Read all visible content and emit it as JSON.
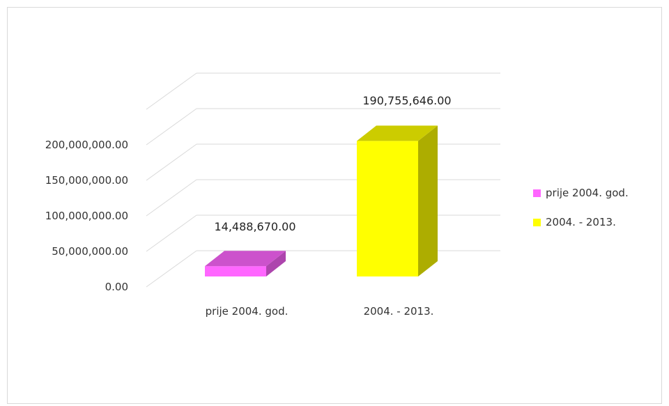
{
  "chart_data": {
    "type": "bar",
    "style": "3d-column",
    "categories": [
      "prije 2004. god.",
      "2004. - 2013."
    ],
    "values": [
      14488670.0,
      190755646.0
    ],
    "data_labels": [
      "14,488,670.00",
      "190,755,646.00"
    ],
    "colors": [
      "#ff66ff",
      "#ffff00"
    ],
    "legend": {
      "position": "right",
      "entries": [
        "prije 2004. god.",
        "2004. - 2013."
      ]
    },
    "y_ticks": [
      0,
      50000000,
      100000000,
      150000000,
      200000000
    ],
    "y_tick_labels": [
      "0.00",
      "50,000,000.00",
      "100,000,000.00",
      "150,000,000.00",
      "200,000,000.00"
    ],
    "ylim": [
      0,
      250000000
    ],
    "grid": true,
    "title": "",
    "xlabel": "",
    "ylabel": ""
  }
}
